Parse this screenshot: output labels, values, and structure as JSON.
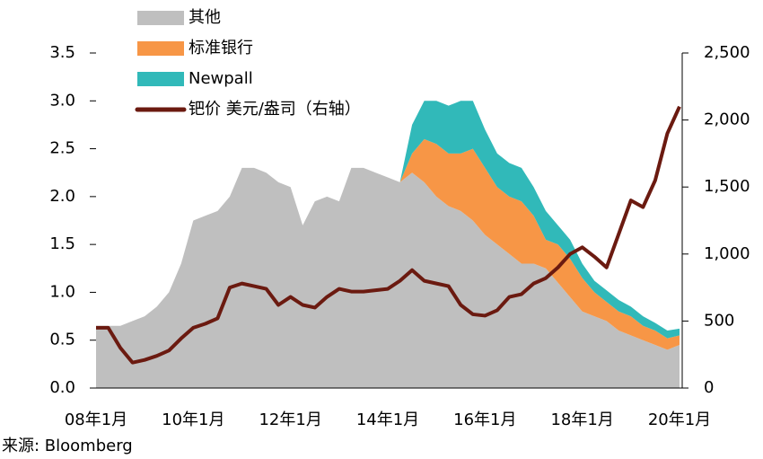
{
  "chart_data": {
    "type": "stacked-area-line",
    "source": "来源: Bloomberg",
    "categories": [
      "08年1月",
      null,
      null,
      null,
      null,
      null,
      null,
      null,
      "10年1月",
      null,
      null,
      null,
      null,
      null,
      null,
      null,
      "12年1月",
      null,
      null,
      null,
      null,
      null,
      null,
      null,
      "14年1月",
      null,
      null,
      null,
      null,
      null,
      null,
      null,
      "16年1月",
      null,
      null,
      null,
      null,
      null,
      null,
      null,
      "18年1月",
      null,
      null,
      null,
      null,
      null,
      null,
      null,
      "20年1月"
    ],
    "stacked": true,
    "series": [
      {
        "name": "其他",
        "color": "#bfbfbf",
        "kind": "area",
        "values": [
          0.65,
          0.65,
          0.65,
          0.7,
          0.75,
          0.85,
          1.0,
          1.3,
          1.75,
          1.8,
          1.85,
          2.0,
          2.3,
          2.3,
          2.25,
          2.15,
          2.1,
          1.7,
          1.95,
          2.0,
          1.95,
          2.3,
          2.3,
          2.25,
          2.2,
          2.15,
          2.25,
          2.15,
          2.0,
          1.9,
          1.85,
          1.75,
          1.6,
          1.5,
          1.4,
          1.3,
          1.3,
          1.25,
          1.1,
          0.95,
          0.8,
          0.75,
          0.7,
          0.6,
          0.55,
          0.5,
          0.45,
          0.4,
          0.45
        ]
      },
      {
        "name": "标准银行",
        "color": "#f79646",
        "kind": "area",
        "values": [
          0,
          0,
          0,
          0,
          0,
          0,
          0,
          0,
          0,
          0,
          0,
          0,
          0,
          0,
          0,
          0,
          0,
          0,
          0,
          0,
          0,
          0,
          0,
          0,
          0,
          0,
          0.2,
          0.45,
          0.55,
          0.55,
          0.6,
          0.75,
          0.7,
          0.6,
          0.6,
          0.65,
          0.5,
          0.3,
          0.4,
          0.4,
          0.35,
          0.25,
          0.2,
          0.2,
          0.2,
          0.15,
          0.15,
          0.12,
          0.1
        ]
      },
      {
        "name": "Newpall",
        "color": "#31b9b9",
        "kind": "area",
        "values": [
          0,
          0,
          0,
          0,
          0,
          0,
          0,
          0,
          0,
          0,
          0,
          0,
          0,
          0,
          0,
          0,
          0,
          0,
          0,
          0,
          0,
          0,
          0,
          0,
          0,
          0,
          0.3,
          0.4,
          0.45,
          0.5,
          0.55,
          0.5,
          0.4,
          0.35,
          0.35,
          0.35,
          0.3,
          0.3,
          0.2,
          0.2,
          0.15,
          0.12,
          0.12,
          0.12,
          0.1,
          0.1,
          0.08,
          0.08,
          0.07
        ]
      },
      {
        "name": "钯价 美元/盎司（右轴）",
        "color": "#6b1a10",
        "kind": "line",
        "axis": "y2",
        "values": [
          450,
          450,
          300,
          190,
          210,
          240,
          280,
          370,
          450,
          480,
          520,
          750,
          780,
          760,
          740,
          620,
          680,
          620,
          600,
          680,
          740,
          720,
          720,
          730,
          740,
          800,
          880,
          800,
          780,
          760,
          620,
          550,
          540,
          580,
          680,
          700,
          780,
          820,
          900,
          1000,
          1050,
          980,
          900,
          1150,
          1400,
          1350,
          1550,
          1900,
          2100
        ]
      }
    ],
    "ylim": [
      0,
      3.5
    ],
    "yticks": [
      {
        "value": 0,
        "label": "0.0"
      },
      0.5,
      {
        "value": 1,
        "label": "1.0"
      },
      1.5,
      {
        "value": 2,
        "label": "2.0"
      },
      2.5,
      {
        "value": 3,
        "label": "3.0"
      },
      3.5
    ],
    "y2lim": [
      0,
      2500
    ],
    "y2ticks": [
      0,
      500,
      {
        "value": 1000,
        "label": "1,000"
      },
      {
        "value": 1500,
        "label": "1,500"
      },
      {
        "value": 2000,
        "label": "2,000"
      },
      {
        "value": 2500,
        "label": "2,500"
      }
    ],
    "legend": "top-left"
  }
}
